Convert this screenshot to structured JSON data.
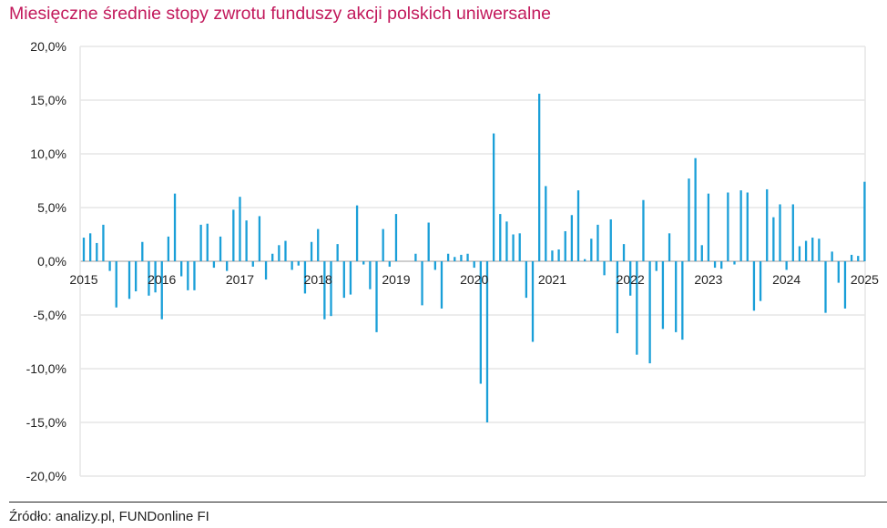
{
  "chart_data": {
    "type": "bar",
    "title": "Miesięczne średnie stopy zwrotu funduszy akcji polskich uniwersalne",
    "source": "Źródło: analizy.pl, FUNDonline FI",
    "colors": {
      "bar": "#1a9fd8",
      "title": "#c2185b",
      "grid": "#e6e6e6"
    },
    "grid": true,
    "ylim": [
      -20,
      20
    ],
    "y_ticks": [
      "20,0%",
      "15,0%",
      "10,0%",
      "5,0%",
      "0,0%",
      "-5,0%",
      "-10,0%",
      "-15,0%",
      "-20,0%"
    ],
    "x_ticks": [
      "2015",
      "2016",
      "2017",
      "2018",
      "2019",
      "2020",
      "2021",
      "2022",
      "2023",
      "2024",
      "2025"
    ],
    "start": "2015-01",
    "series": [
      {
        "values": [
          2.2,
          2.6,
          1.7,
          3.4,
          -0.9,
          -4.3,
          0.0,
          -3.5,
          -2.8,
          1.8,
          -3.2,
          -2.9,
          -5.4,
          2.3,
          6.3,
          -1.4,
          -2.7,
          -2.7,
          3.4,
          3.5,
          -0.6,
          2.3,
          -0.9,
          4.8,
          6.0,
          3.8,
          -0.5,
          4.2,
          -1.7,
          0.7,
          1.5,
          1.9,
          -0.8,
          -0.4,
          -3.0,
          1.8,
          3.0,
          -5.4,
          -5.1,
          1.6,
          -3.4,
          -3.1,
          5.2,
          -0.3,
          -2.6,
          -6.6,
          3.0,
          -0.5,
          4.4,
          0.0,
          0.0,
          0.7,
          -4.1,
          3.6,
          -0.8,
          -4.4,
          0.7,
          0.4,
          0.6,
          0.7,
          -0.6,
          -11.4,
          -15.0,
          11.9,
          4.4,
          3.7,
          2.5,
          2.6,
          -3.4,
          -7.5,
          15.6,
          7.0,
          1.0,
          1.1,
          2.8,
          4.3,
          6.6,
          0.2,
          2.1,
          3.4,
          -1.3,
          3.9,
          -6.7,
          1.6,
          -3.2,
          -8.7,
          5.7,
          -9.5,
          -0.9,
          -6.3,
          2.6,
          -6.6,
          -7.3,
          7.7,
          9.6,
          1.5,
          6.3,
          -0.6,
          -0.7,
          6.4,
          -0.3,
          6.6,
          6.4,
          -4.6,
          -3.7,
          6.7,
          4.1,
          5.3,
          -0.8,
          5.3,
          1.4,
          1.9,
          2.2,
          2.1,
          -4.8,
          0.9,
          -2.0,
          -4.4,
          0.6,
          0.5,
          7.4
        ]
      }
    ]
  }
}
